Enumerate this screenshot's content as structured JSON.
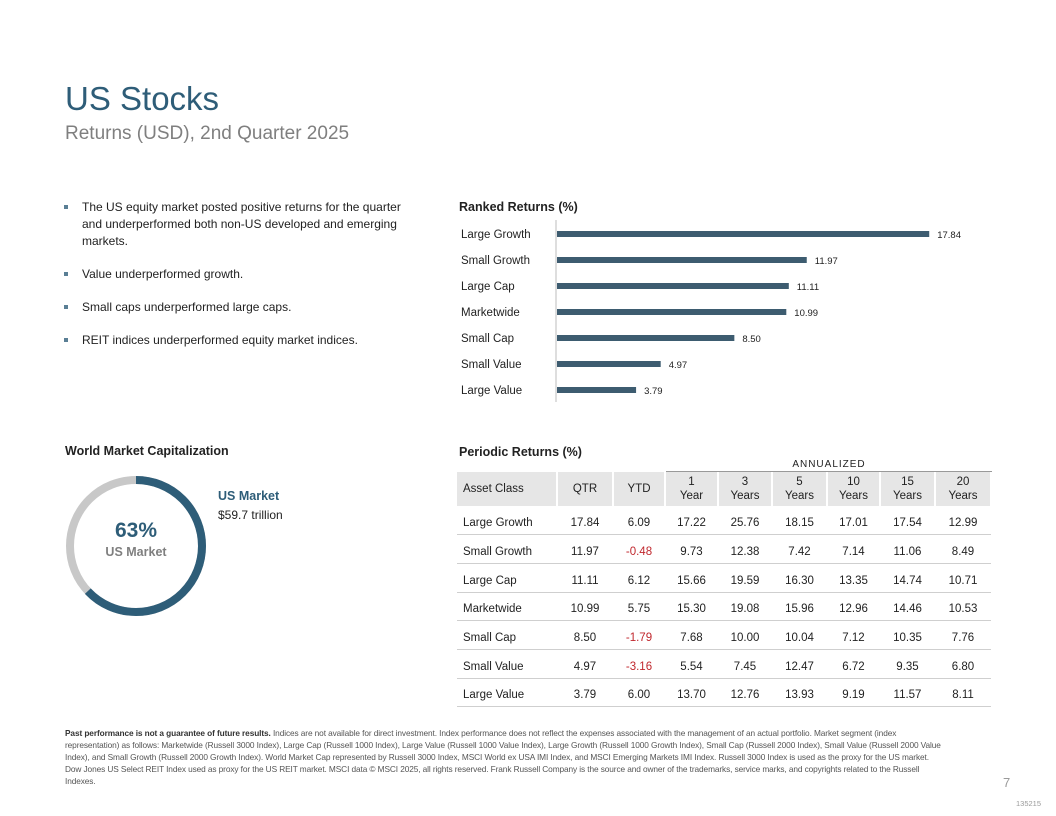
{
  "header": {
    "title": "US Stocks",
    "subtitle": "Returns (USD), 2nd Quarter 2025"
  },
  "bullets": [
    "The US equity market posted positive returns for the quarter and underperformed both non-US developed and emerging markets.",
    "Value underperformed growth.",
    "Small caps underperformed large caps.",
    "REIT indices underperformed equity market indices."
  ],
  "colors": {
    "accent": "#2e5d78",
    "bar": "#3d5c70",
    "donut_gray": "#c8c8c8",
    "negative": "#c0272d"
  },
  "chart_data": {
    "type": "bar",
    "orientation": "horizontal",
    "title": "Ranked Returns (%)",
    "categories": [
      "Large Growth",
      "Small Growth",
      "Large Cap",
      "Marketwide",
      "Small Cap",
      "Small Value",
      "Large Value"
    ],
    "values": [
      17.84,
      11.97,
      11.11,
      10.99,
      8.5,
      4.97,
      3.79
    ],
    "value_labels": [
      "17.84",
      "11.97",
      "11.11",
      "10.99",
      "8.50",
      "4.97",
      "3.79"
    ],
    "xlim": [
      0,
      18.5
    ],
    "xlabel": "",
    "ylabel": ""
  },
  "world_cap": {
    "title": "World Market Capitalization",
    "percent": 63,
    "percent_label": "63%",
    "center_label": "US Market",
    "legend_title": "US Market",
    "legend_value": "$59.7 trillion"
  },
  "periodic": {
    "title": "Periodic Returns (%)",
    "annualized_label": "ANNUALIZED",
    "headers": [
      {
        "l1": "Asset Class",
        "l2": ""
      },
      {
        "l1": "QTR",
        "l2": ""
      },
      {
        "l1": "YTD",
        "l2": ""
      },
      {
        "l1": "1",
        "l2": "Year"
      },
      {
        "l1": "3",
        "l2": "Years"
      },
      {
        "l1": "5",
        "l2": "Years"
      },
      {
        "l1": "10",
        "l2": "Years"
      },
      {
        "l1": "15",
        "l2": "Years"
      },
      {
        "l1": "20",
        "l2": "Years"
      }
    ],
    "rows": [
      [
        "Large Growth",
        "17.84",
        "6.09",
        "17.22",
        "25.76",
        "18.15",
        "17.01",
        "17.54",
        "12.99"
      ],
      [
        "Small Growth",
        "11.97",
        "-0.48",
        "9.73",
        "12.38",
        "7.42",
        "7.14",
        "11.06",
        "8.49"
      ],
      [
        "Large Cap",
        "11.11",
        "6.12",
        "15.66",
        "19.59",
        "16.30",
        "13.35",
        "14.74",
        "10.71"
      ],
      [
        "Marketwide",
        "10.99",
        "5.75",
        "15.30",
        "19.08",
        "15.96",
        "12.96",
        "14.46",
        "10.53"
      ],
      [
        "Small Cap",
        "8.50",
        "-1.79",
        "7.68",
        "10.00",
        "10.04",
        "7.12",
        "10.35",
        "7.76"
      ],
      [
        "Small Value",
        "4.97",
        "-3.16",
        "5.54",
        "7.45",
        "12.47",
        "6.72",
        "9.35",
        "6.80"
      ],
      [
        "Large Value",
        "3.79",
        "6.00",
        "13.70",
        "12.76",
        "13.93",
        "9.19",
        "11.57",
        "8.11"
      ]
    ]
  },
  "footer": {
    "bold": "Past performance is not a guarantee of future results.",
    "text": " Indices are not available for direct investment. Index performance does not reflect the expenses associated with the management of an actual portfolio. Market segment (index representation) as follows: Marketwide (Russell 3000 Index), Large Cap (Russell 1000 Index), Large Value (Russell 1000 Value Index), Large Growth (Russell 1000 Growth Index), Small Cap (Russell 2000 Index), Small Value (Russell 2000 Value Index), and Small Growth (Russell 2000 Growth Index). World Market Cap represented by Russell 3000 Index, MSCI World ex USA IMI Index, and MSCI Emerging Markets IMI Index. Russell 3000 Index is used as the proxy for the US market. Dow Jones US Select REIT Index used as proxy for the US REIT market. MSCI data © MSCI 2025, all rights reserved. Frank Russell Company is the source and owner of the trademarks, service marks, and copyrights related to the Russell Indexes.",
    "page_number": "7",
    "doc_code": "135215"
  }
}
